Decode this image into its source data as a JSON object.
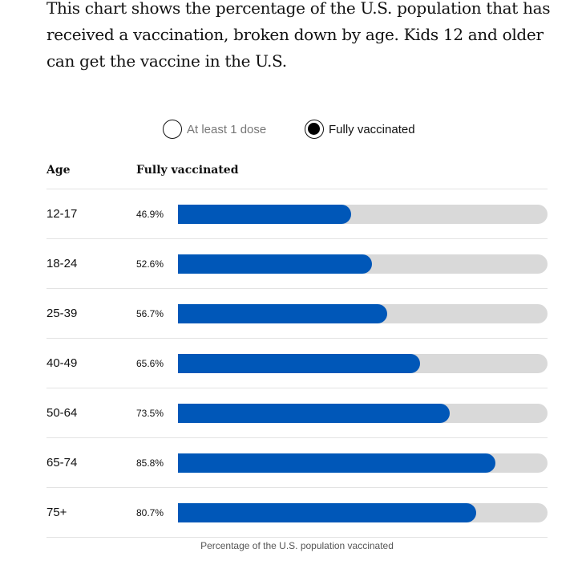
{
  "description": "This chart shows the percentage of the U.S. population that has received a vaccination, broken down by age. Kids 12 and older can get the vaccine in the U.S.",
  "legend": {
    "options": [
      {
        "label": "At least 1 dose",
        "selected": false
      },
      {
        "label": "Fully vaccinated",
        "selected": true
      }
    ]
  },
  "colors": {
    "bar": "#0057b8",
    "track": "#d9d9d9"
  },
  "chart_data": {
    "type": "bar",
    "orientation": "horizontal",
    "column_headers": [
      "Age",
      "Fully vaccinated"
    ],
    "categories": [
      "12-17",
      "18-24",
      "25-39",
      "40-49",
      "50-64",
      "65-74",
      "75+"
    ],
    "values": [
      46.9,
      52.6,
      56.7,
      65.6,
      73.5,
      85.8,
      80.7
    ],
    "value_labels": [
      "46.9%",
      "52.6%",
      "56.7%",
      "65.6%",
      "73.5%",
      "85.8%",
      "80.7%"
    ],
    "xlabel": "Percentage of the U.S. population vaccinated",
    "xlim": [
      0,
      100
    ]
  }
}
